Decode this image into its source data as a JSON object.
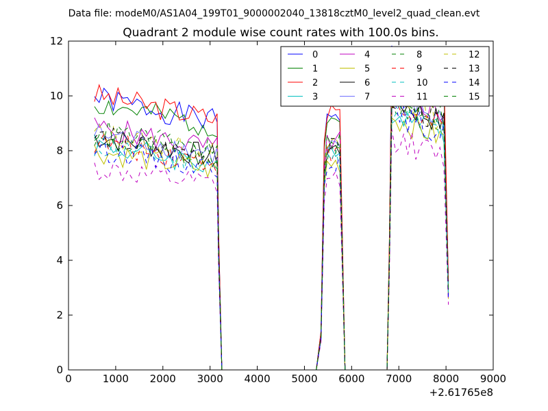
{
  "figure": {
    "file_title": "Data file: modeM0/AS1A04_199T01_9000002040_13818cztM0_level2_quad_clean.evt"
  },
  "chart_data": {
    "type": "line",
    "title": "Quadrant 2 module wise count rates with 100.0s bins.",
    "xlabel": "",
    "ylabel": "",
    "xlim": [
      0,
      9000
    ],
    "ylim": [
      0,
      12
    ],
    "x_ticks": [
      0,
      1000,
      2000,
      3000,
      4000,
      5000,
      6000,
      7000,
      8000,
      9000
    ],
    "x_tick_labels": [
      "0",
      "1000",
      "2000",
      "3000",
      "4000",
      "5000",
      "6000",
      "7000",
      "8000",
      "9000"
    ],
    "y_ticks": [
      0,
      2,
      4,
      6,
      8,
      10,
      12
    ],
    "y_tick_labels": [
      "0",
      "2",
      "4",
      "6",
      "8",
      "10",
      "12"
    ],
    "x_offset_label": "+2.61765e8",
    "grid": false,
    "legend_position": "top-right",
    "legend_columns": 4,
    "segments": [
      {
        "start": 550,
        "n": 27
      },
      {
        "start": 5250,
        "n": 7
      },
      {
        "start": 6750,
        "n": 14
      }
    ],
    "series": [
      {
        "name": "0",
        "color": "#0000ff",
        "dash": "solid",
        "level": 9.2,
        "seed": 1
      },
      {
        "name": "1",
        "color": "#008000",
        "dash": "solid",
        "level": 9.0,
        "seed": 2
      },
      {
        "name": "2",
        "color": "#ff0000",
        "dash": "solid",
        "level": 9.3,
        "seed": 3
      },
      {
        "name": "3",
        "color": "#00bfbf",
        "dash": "solid",
        "level": 7.6,
        "seed": 4
      },
      {
        "name": "4",
        "color": "#bf00bf",
        "dash": "solid",
        "level": 8.2,
        "seed": 5
      },
      {
        "name": "5",
        "color": "#bfbf00",
        "dash": "solid",
        "level": 7.4,
        "seed": 6
      },
      {
        "name": "6",
        "color": "#000000",
        "dash": "solid",
        "level": 7.9,
        "seed": 7
      },
      {
        "name": "7",
        "color": "#7070ff",
        "dash": "solid",
        "level": 8.0,
        "seed": 8
      },
      {
        "name": "8",
        "color": "#008000",
        "dash": "dashed",
        "level": 7.8,
        "seed": 9
      },
      {
        "name": "9",
        "color": "#ff0000",
        "dash": "dashed",
        "level": 7.7,
        "seed": 10
      },
      {
        "name": "10",
        "color": "#00bfbf",
        "dash": "dashed",
        "level": 7.6,
        "seed": 11
      },
      {
        "name": "11",
        "color": "#bf00bf",
        "dash": "dashed",
        "level": 6.8,
        "seed": 12
      },
      {
        "name": "12",
        "color": "#bfbf00",
        "dash": "dashed",
        "level": 8.0,
        "seed": 13
      },
      {
        "name": "13",
        "color": "#000000",
        "dash": "dashed",
        "level": 7.9,
        "seed": 14
      },
      {
        "name": "14",
        "color": "#0000ff",
        "dash": "dashed",
        "level": 7.5,
        "seed": 15
      },
      {
        "name": "15",
        "color": "#008000",
        "dash": "dashed",
        "level": 8.1,
        "seed": 16
      }
    ]
  }
}
